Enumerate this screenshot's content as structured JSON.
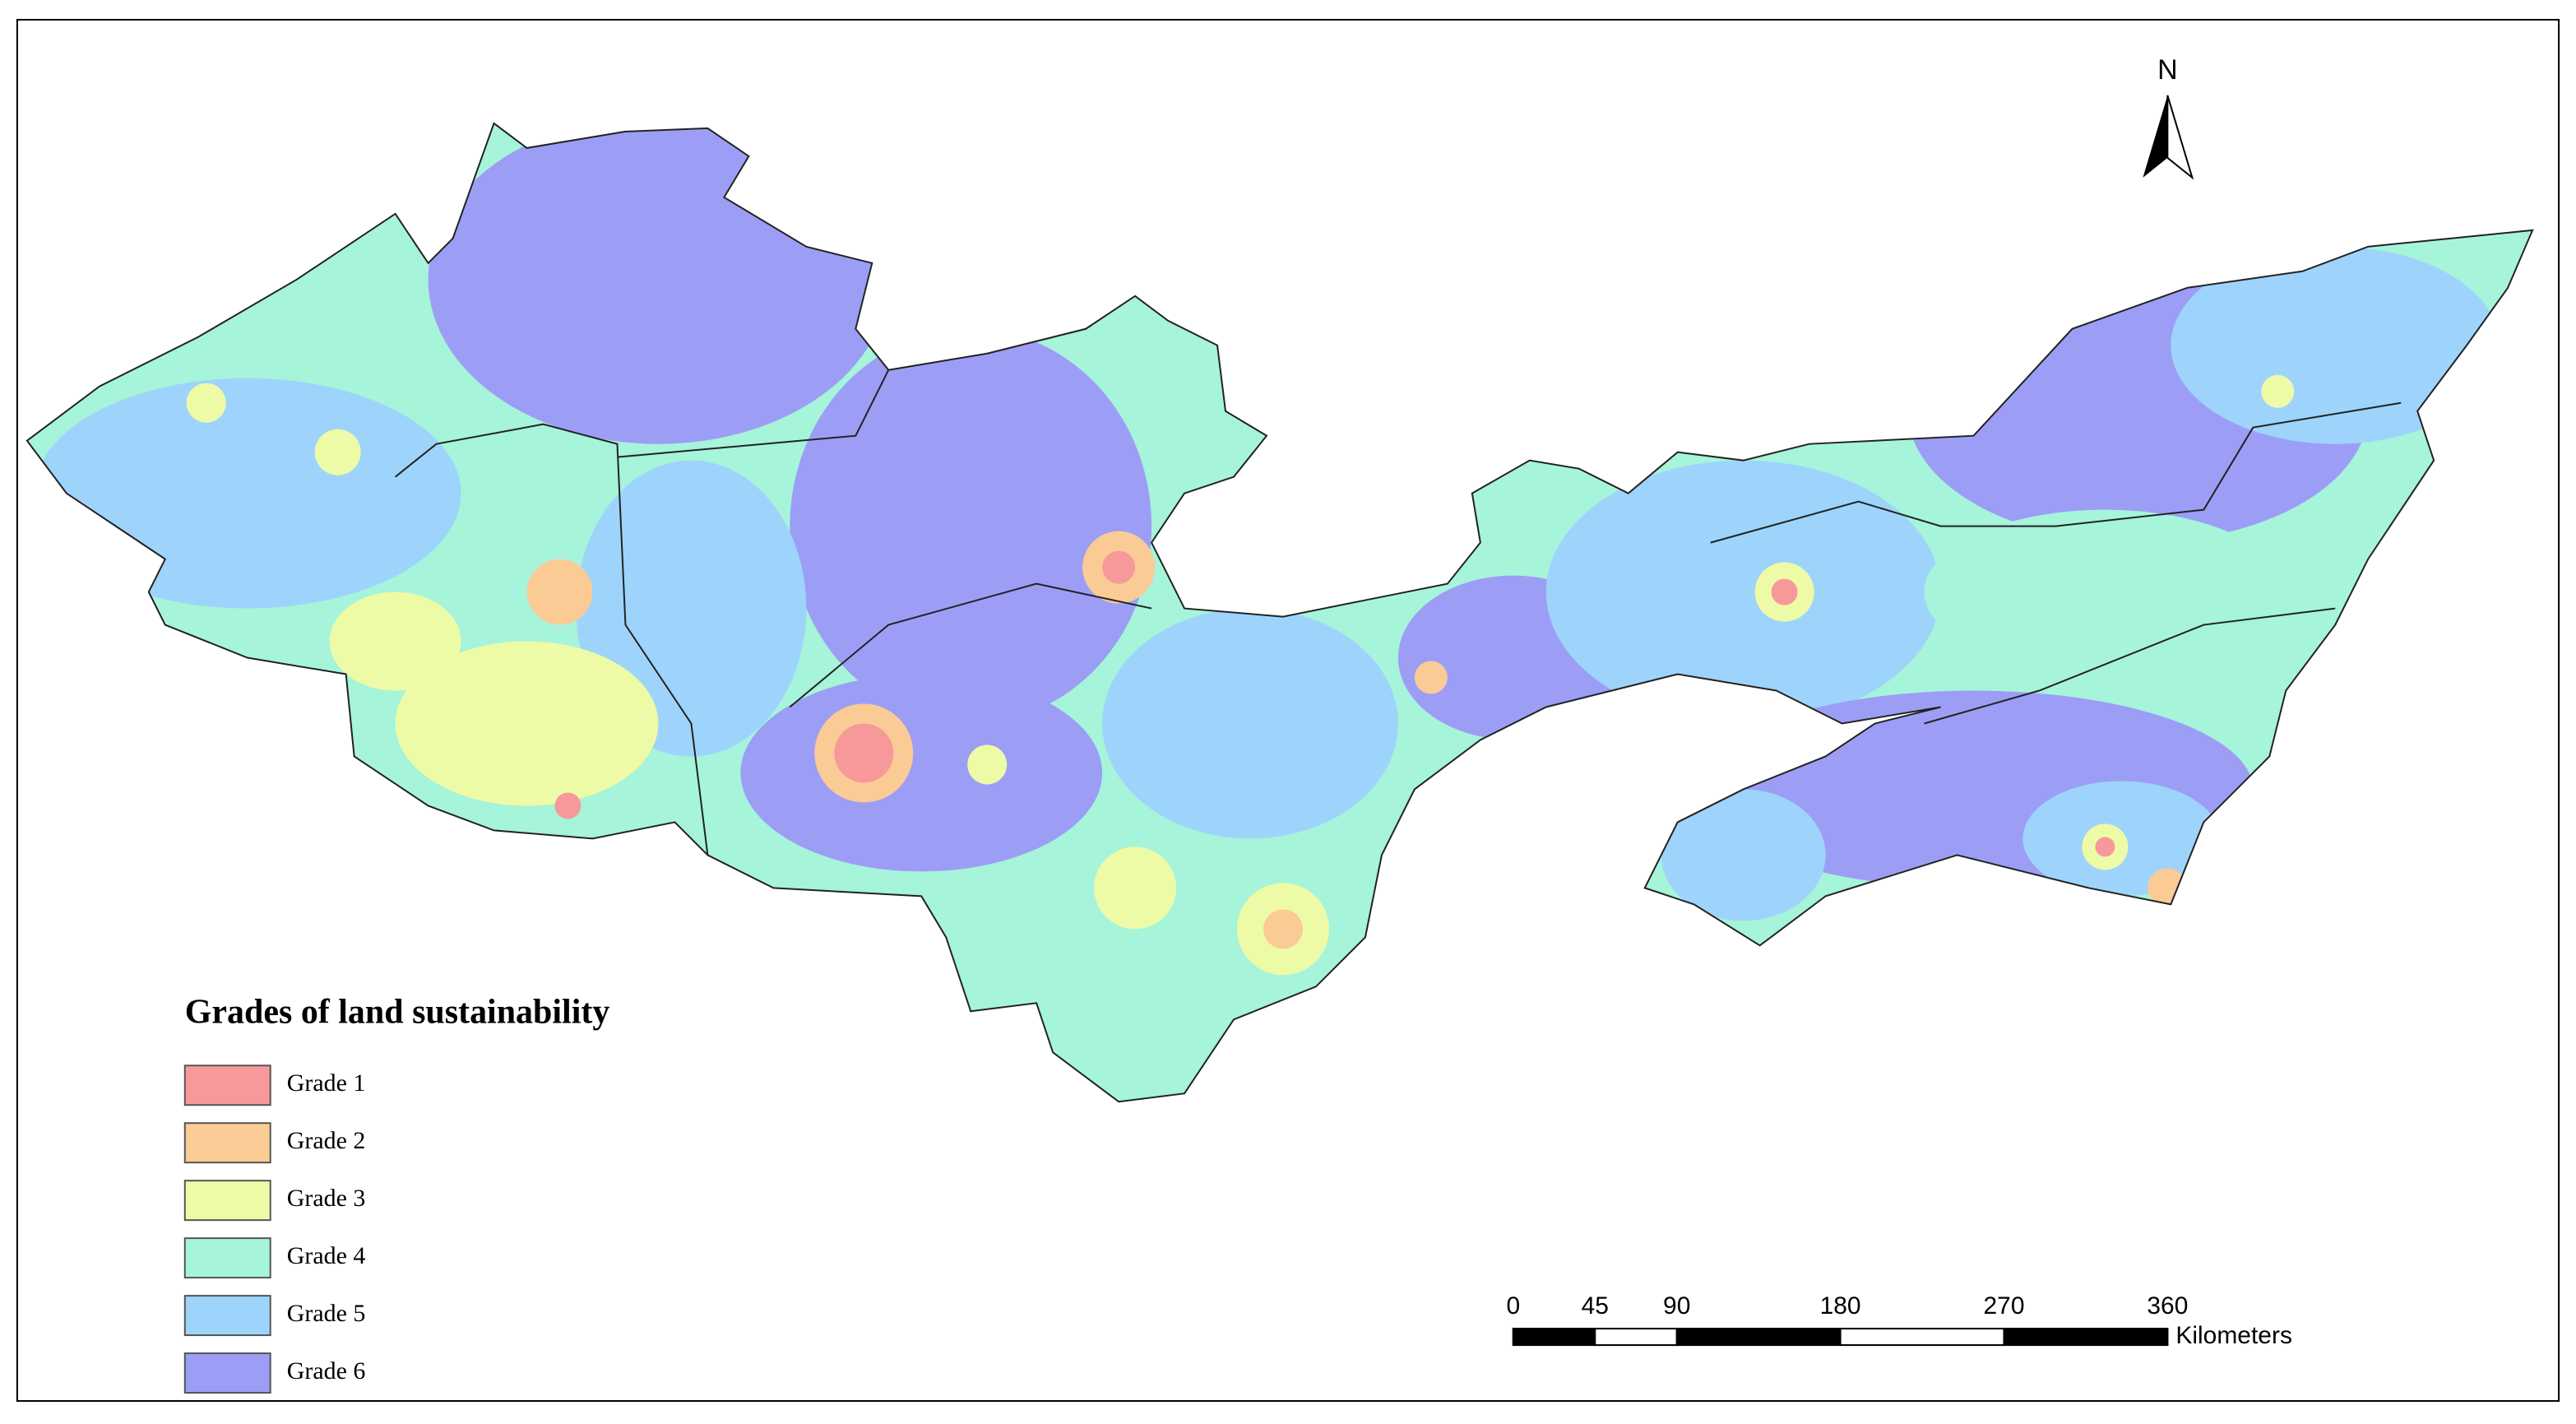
{
  "legend": {
    "title": "Grades of land sustainability",
    "items": [
      {
        "label": "Grade 1",
        "color": "#f7999a"
      },
      {
        "label": "Grade 2",
        "color": "#fbcb95"
      },
      {
        "label": "Grade 3",
        "color": "#eefba6"
      },
      {
        "label": "Grade 4",
        "color": "#a6f4da"
      },
      {
        "label": "Grade 5",
        "color": "#9ed4fb"
      },
      {
        "label": "Grade 6",
        "color": "#9c9ef6"
      }
    ]
  },
  "north_arrow": {
    "label": "N"
  },
  "scale_bar": {
    "ticks": [
      0,
      45,
      90,
      180,
      270,
      360
    ],
    "unit": "Kilometers"
  }
}
